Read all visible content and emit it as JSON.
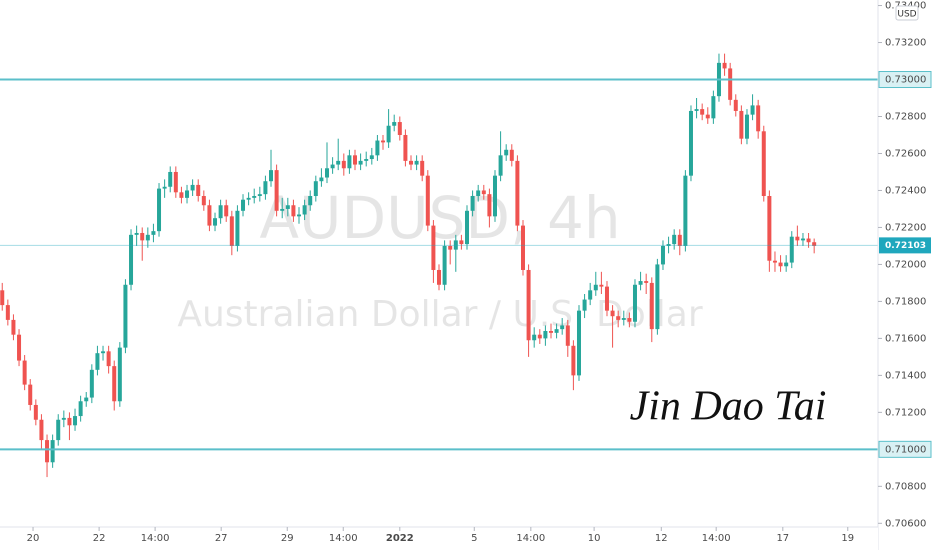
{
  "chart_data": {
    "type": "candlestick",
    "title": "AUDUSD, 4h",
    "subtitle": "Australian Dollar / U.S. Dollar",
    "annotation": "Jin Dao Tai",
    "currency": "USD",
    "up_color": "#26a69a",
    "down_color": "#ef5350",
    "level_color": "#5bbfca",
    "last_color": "#1fa7bd",
    "grid": false,
    "ylim": [
      0.7058,
      0.7343
    ],
    "yticks": [
      {
        "value": 0.734,
        "label": "0.73400"
      },
      {
        "value": 0.732,
        "label": "0.73200"
      },
      {
        "value": 0.728,
        "label": "0.72800"
      },
      {
        "value": 0.726,
        "label": "0.72600"
      },
      {
        "value": 0.724,
        "label": "0.72400"
      },
      {
        "value": 0.722,
        "label": "0.72200"
      },
      {
        "value": 0.72,
        "label": "0.72000"
      },
      {
        "value": 0.718,
        "label": "0.71800"
      },
      {
        "value": 0.716,
        "label": "0.71600"
      },
      {
        "value": 0.714,
        "label": "0.71400"
      },
      {
        "value": 0.712,
        "label": "0.71200"
      },
      {
        "value": 0.708,
        "label": "0.70800"
      },
      {
        "value": 0.706,
        "label": "0.70600"
      }
    ],
    "levels": [
      {
        "value": 0.73,
        "label": "0.73000"
      },
      {
        "value": 0.71,
        "label": "0.71000"
      }
    ],
    "last_price": 0.72103,
    "xlim": [
      -0.4,
      156.4
    ],
    "xticks": [
      {
        "value": 5.5,
        "label": "20"
      },
      {
        "value": 17.3,
        "label": "22"
      },
      {
        "value": 27.3,
        "label": "14:00"
      },
      {
        "value": 39.1,
        "label": "27"
      },
      {
        "value": 50.9,
        "label": "29"
      },
      {
        "value": 60.9,
        "label": "14:00"
      },
      {
        "value": 71.0,
        "label": "2022"
      },
      {
        "value": 84.3,
        "label": "5"
      },
      {
        "value": 94.4,
        "label": "14:00"
      },
      {
        "value": 105.7,
        "label": "10"
      },
      {
        "value": 117.7,
        "label": "12"
      },
      {
        "value": 127.5,
        "label": "14:00"
      },
      {
        "value": 139.4,
        "label": "17"
      },
      {
        "value": 151.0,
        "label": "19"
      }
    ],
    "x": [
      0,
      1,
      2,
      3,
      4,
      5,
      6,
      7,
      8,
      9,
      10,
      11,
      12,
      13,
      14,
      15,
      16,
      17,
      18,
      19,
      20,
      21,
      22,
      23,
      24,
      25,
      26,
      27,
      28,
      29,
      30,
      31,
      32,
      33,
      34,
      35,
      36,
      37,
      38,
      39,
      40,
      41,
      42,
      43,
      44,
      45,
      46,
      47,
      48,
      49,
      50,
      51,
      52,
      53,
      54,
      55,
      56,
      57,
      58,
      59,
      60,
      61,
      62,
      63,
      64,
      65,
      66,
      67,
      68,
      69,
      70,
      71,
      72,
      73,
      74,
      75,
      76,
      77,
      78,
      79,
      80,
      81,
      82,
      83,
      84,
      85,
      86,
      87,
      88,
      89,
      90,
      91,
      92,
      93,
      94,
      95,
      96,
      97,
      98,
      99,
      100,
      101,
      102,
      103,
      104,
      105,
      106,
      107,
      108,
      109,
      110,
      111,
      112,
      113,
      114,
      115,
      116,
      117,
      118,
      119,
      120,
      121,
      122,
      123,
      124,
      125,
      126,
      127,
      128,
      129,
      130,
      131,
      132,
      133,
      134,
      135,
      136,
      137,
      138,
      139,
      140,
      141,
      142,
      143,
      144,
      145
    ],
    "open": [
      0.7186,
      0.7178,
      0.717,
      0.7162,
      0.7148,
      0.7135,
      0.7124,
      0.7116,
      0.7105,
      0.7093,
      0.7105,
      0.7116,
      0.7117,
      0.7113,
      0.7118,
      0.7126,
      0.7128,
      0.7143,
      0.7152,
      0.7153,
      0.7145,
      0.7126,
      0.7155,
      0.7189,
      0.7216,
      0.7217,
      0.7213,
      0.7216,
      0.7218,
      0.7241,
      0.7242,
      0.725,
      0.7239,
      0.7236,
      0.724,
      0.7243,
      0.7237,
      0.7232,
      0.7221,
      0.7225,
      0.7232,
      0.7226,
      0.721,
      0.7229,
      0.7235,
      0.7236,
      0.7237,
      0.7238,
      0.7245,
      0.7251,
      0.7229,
      0.723,
      0.7232,
      0.7226,
      0.7227,
      0.7232,
      0.7237,
      0.7245,
      0.7247,
      0.7252,
      0.7254,
      0.7256,
      0.7252,
      0.7259,
      0.7254,
      0.7256,
      0.7257,
      0.7259,
      0.7267,
      0.7266,
      0.7275,
      0.7277,
      0.727,
      0.7256,
      0.7254,
      0.7256,
      0.7248,
      0.7221,
      0.7197,
      0.7189,
      0.721,
      0.7208,
      0.7213,
      0.7211,
      0.7229,
      0.7237,
      0.724,
      0.7238,
      0.7226,
      0.7248,
      0.7259,
      0.7262,
      0.7256,
      0.7221,
      0.7197,
      0.7159,
      0.7162,
      0.716,
      0.7164,
      0.7163,
      0.7165,
      0.7167,
      0.7156,
      0.714,
      0.7175,
      0.7181,
      0.7186,
      0.7189,
      0.7188,
      0.7175,
      0.7172,
      0.717,
      0.7171,
      0.7169,
      0.7189,
      0.7191,
      0.719,
      0.7165,
      0.72,
      0.721,
      0.7211,
      0.7216,
      0.721,
      0.7248,
      0.7283,
      0.7284,
      0.7281,
      0.7279,
      0.7291,
      0.7309,
      0.7306,
      0.7289,
      0.7283,
      0.7268,
      0.7281,
      0.7286,
      0.7272,
      0.7237,
      0.7202,
      0.7201,
      0.7199,
      0.7201,
      0.7215,
      0.7213,
      0.7214,
      0.7212
    ],
    "high": [
      0.719,
      0.7181,
      0.7173,
      0.7165,
      0.7151,
      0.7138,
      0.7127,
      0.7119,
      0.7108,
      0.7108,
      0.7119,
      0.7121,
      0.712,
      0.7122,
      0.7129,
      0.7131,
      0.7146,
      0.7156,
      0.7156,
      0.7156,
      0.7148,
      0.7158,
      0.7192,
      0.7219,
      0.7221,
      0.722,
      0.722,
      0.7222,
      0.7244,
      0.7246,
      0.7253,
      0.7253,
      0.7242,
      0.7243,
      0.7246,
      0.7246,
      0.724,
      0.7235,
      0.7228,
      0.7235,
      0.7235,
      0.7229,
      0.7232,
      0.7238,
      0.7239,
      0.7241,
      0.7242,
      0.7248,
      0.7262,
      0.7254,
      0.7236,
      0.7236,
      0.7235,
      0.7231,
      0.7235,
      0.724,
      0.7248,
      0.7252,
      0.7266,
      0.7258,
      0.7268,
      0.726,
      0.7262,
      0.7262,
      0.726,
      0.7261,
      0.7263,
      0.727,
      0.727,
      0.7284,
      0.7281,
      0.728,
      0.7273,
      0.7259,
      0.7259,
      0.7259,
      0.7251,
      0.7224,
      0.72,
      0.7213,
      0.7213,
      0.7216,
      0.7216,
      0.7232,
      0.724,
      0.7243,
      0.7243,
      0.7241,
      0.7251,
      0.7272,
      0.7265,
      0.7265,
      0.7259,
      0.7224,
      0.72,
      0.7166,
      0.7165,
      0.7167,
      0.7168,
      0.7168,
      0.7171,
      0.717,
      0.7159,
      0.7178,
      0.7184,
      0.719,
      0.7196,
      0.7196,
      0.7191,
      0.7178,
      0.7175,
      0.7175,
      0.7174,
      0.7192,
      0.7196,
      0.7195,
      0.7193,
      0.7203,
      0.7213,
      0.7215,
      0.7219,
      0.7219,
      0.7251,
      0.7286,
      0.729,
      0.7287,
      0.7285,
      0.7294,
      0.7314,
      0.7314,
      0.7309,
      0.7292,
      0.7286,
      0.7284,
      0.7292,
      0.7289,
      0.7275,
      0.724,
      0.7207,
      0.7205,
      0.7205,
      0.7218,
      0.7221,
      0.7217,
      0.7217,
      0.7214
    ],
    "low": [
      0.7175,
      0.7167,
      0.7159,
      0.7145,
      0.7132,
      0.7121,
      0.7113,
      0.71,
      0.7085,
      0.709,
      0.7102,
      0.7112,
      0.7105,
      0.711,
      0.7115,
      0.7123,
      0.7125,
      0.714,
      0.7148,
      0.7141,
      0.7121,
      0.7123,
      0.7152,
      0.7186,
      0.721,
      0.7202,
      0.7209,
      0.7212,
      0.7215,
      0.7236,
      0.7239,
      0.7236,
      0.7233,
      0.7233,
      0.7237,
      0.7234,
      0.7229,
      0.7218,
      0.7218,
      0.7222,
      0.7223,
      0.7205,
      0.7207,
      0.7226,
      0.7232,
      0.7233,
      0.7234,
      0.7235,
      0.7242,
      0.7226,
      0.7225,
      0.7226,
      0.7223,
      0.7222,
      0.7224,
      0.7229,
      0.7234,
      0.7242,
      0.7244,
      0.7249,
      0.7251,
      0.7248,
      0.7249,
      0.7251,
      0.7251,
      0.7253,
      0.7254,
      0.7256,
      0.7262,
      0.7263,
      0.7272,
      0.7267,
      0.7253,
      0.7251,
      0.7251,
      0.7245,
      0.7218,
      0.719,
      0.7186,
      0.7186,
      0.72,
      0.7196,
      0.7208,
      0.7208,
      0.7226,
      0.7234,
      0.7235,
      0.722,
      0.7223,
      0.7245,
      0.7256,
      0.7253,
      0.7218,
      0.7194,
      0.715,
      0.7155,
      0.7157,
      0.7156,
      0.716,
      0.716,
      0.7162,
      0.715,
      0.7132,
      0.7137,
      0.7171,
      0.7178,
      0.7183,
      0.7184,
      0.7172,
      0.7155,
      0.7166,
      0.7167,
      0.7166,
      0.7166,
      0.7186,
      0.7184,
      0.7158,
      0.7162,
      0.7197,
      0.7206,
      0.7208,
      0.7205,
      0.7207,
      0.7245,
      0.7279,
      0.7278,
      0.7276,
      0.7276,
      0.7288,
      0.7302,
      0.7286,
      0.728,
      0.7265,
      0.7265,
      0.7278,
      0.7268,
      0.7234,
      0.7196,
      0.7196,
      0.7196,
      0.7196,
      0.7198,
      0.721,
      0.721,
      0.7209,
      0.7206
    ],
    "close": [
      0.7178,
      0.717,
      0.7162,
      0.7148,
      0.7135,
      0.7124,
      0.7116,
      0.7105,
      0.7093,
      0.7105,
      0.7116,
      0.7117,
      0.7113,
      0.7118,
      0.7126,
      0.7128,
      0.7143,
      0.7152,
      0.7153,
      0.7145,
      0.7126,
      0.7155,
      0.7189,
      0.7216,
      0.7217,
      0.7213,
      0.7216,
      0.7218,
      0.7241,
      0.7242,
      0.725,
      0.7239,
      0.7236,
      0.724,
      0.7243,
      0.7237,
      0.7232,
      0.7221,
      0.7225,
      0.7232,
      0.7226,
      0.721,
      0.7229,
      0.7235,
      0.7236,
      0.7237,
      0.7238,
      0.7245,
      0.7251,
      0.7229,
      0.723,
      0.7232,
      0.7226,
      0.7227,
      0.7232,
      0.7237,
      0.7245,
      0.7247,
      0.7252,
      0.7254,
      0.7256,
      0.7252,
      0.7259,
      0.7254,
      0.7256,
      0.7257,
      0.7259,
      0.7267,
      0.7266,
      0.7275,
      0.7277,
      0.727,
      0.7256,
      0.7254,
      0.7256,
      0.7248,
      0.7221,
      0.7197,
      0.7189,
      0.721,
      0.7208,
      0.7213,
      0.7211,
      0.7229,
      0.7237,
      0.724,
      0.7238,
      0.7226,
      0.7248,
      0.7259,
      0.7262,
      0.7256,
      0.7221,
      0.7197,
      0.7159,
      0.7162,
      0.716,
      0.7164,
      0.7163,
      0.7165,
      0.7167,
      0.7156,
      0.714,
      0.7175,
      0.7181,
      0.7186,
      0.7189,
      0.7188,
      0.7175,
      0.7172,
      0.717,
      0.7171,
      0.7169,
      0.7189,
      0.7191,
      0.719,
      0.7165,
      0.72,
      0.721,
      0.7211,
      0.7216,
      0.721,
      0.7248,
      0.7283,
      0.7284,
      0.7281,
      0.7279,
      0.7291,
      0.7309,
      0.7306,
      0.7289,
      0.7283,
      0.7268,
      0.7281,
      0.7286,
      0.7272,
      0.7237,
      0.7202,
      0.7201,
      0.7199,
      0.7201,
      0.7215,
      0.7213,
      0.7214,
      0.7212,
      0.721
    ]
  }
}
